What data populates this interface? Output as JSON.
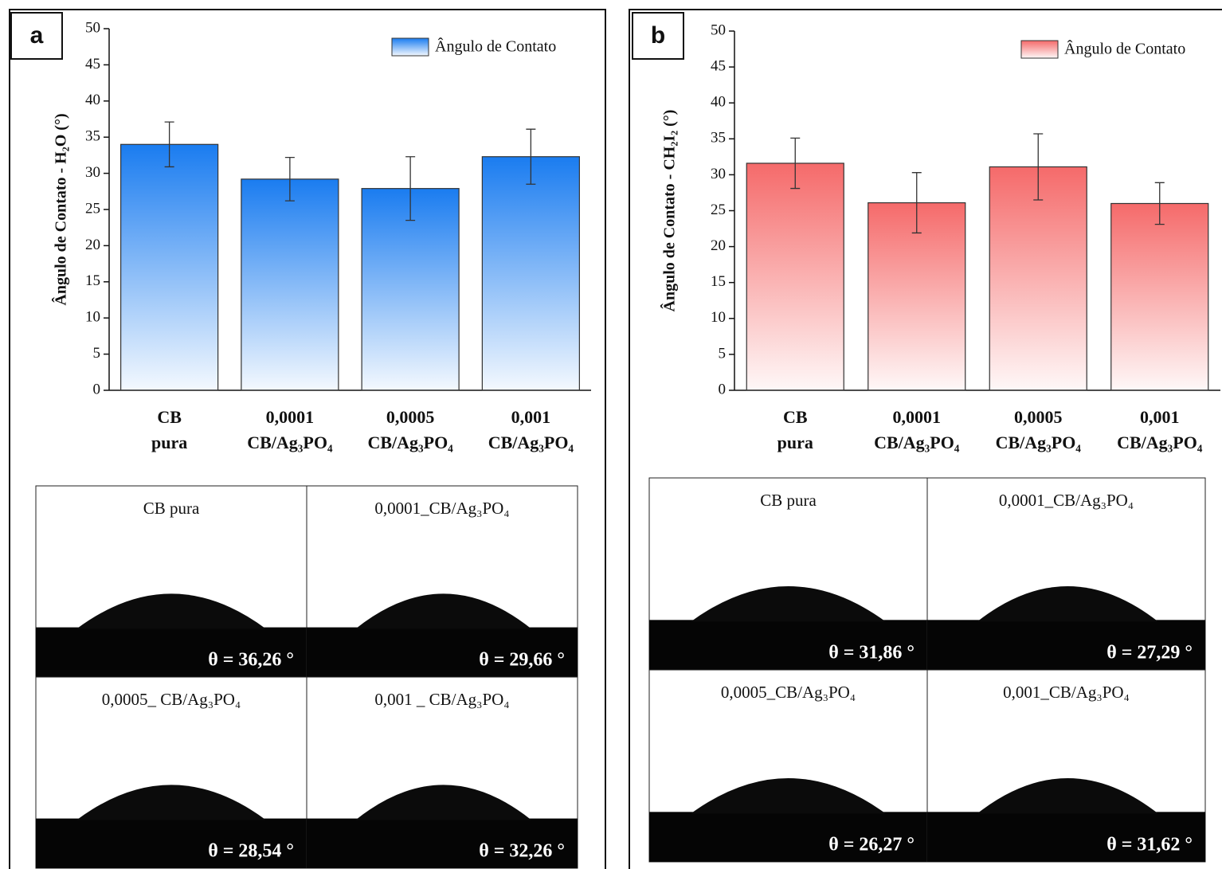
{
  "chart_data": [
    {
      "type": "bar",
      "panel": "a",
      "y_label": "Ângulo de Contato - H₂O (°)",
      "categories": [
        "CB pura",
        "0,0001 CB/Ag₃PO₄",
        "0,0005 CB/Ag₃PO₄",
        "0,001 CB/Ag₃PO₄"
      ],
      "series": [
        {
          "name": "Ângulo de Contato",
          "color": "#1a7cf0",
          "values": [
            34.0,
            29.2,
            27.9,
            32.3
          ],
          "errors": [
            3.1,
            3.0,
            4.4,
            3.8
          ]
        }
      ],
      "ylim": [
        0,
        50
      ],
      "yticks": [
        0,
        5,
        10,
        15,
        20,
        25,
        30,
        35,
        40,
        45,
        50
      ],
      "legend": "top-right",
      "images": [
        {
          "caption": "CB pura",
          "angle": "θ = 36,26 °"
        },
        {
          "caption": "0,0001_CB/Ag₃PO₄",
          "angle": "θ = 29,66 °"
        },
        {
          "caption": "0,0005_ CB/Ag₃PO₄",
          "angle": "θ = 28,54 °"
        },
        {
          "caption": "0,001 _ CB/Ag₃PO₄",
          "angle": "θ = 32,26 °"
        }
      ]
    },
    {
      "type": "bar",
      "panel": "b",
      "y_label": "Ângulo de Contato - CH₂I₂ (°)",
      "categories": [
        "CB pura",
        "0,0001 CB/Ag₃PO₄",
        "0,0005 CB/Ag₃PO₄",
        "0,001 CB/Ag₃PO₄"
      ],
      "series": [
        {
          "name": "Ângulo de Contato",
          "color": "#f56a6a",
          "values": [
            31.6,
            26.1,
            31.1,
            26.0
          ],
          "errors": [
            3.5,
            4.2,
            4.6,
            2.9
          ]
        }
      ],
      "ylim": [
        0,
        50
      ],
      "yticks": [
        0,
        5,
        10,
        15,
        20,
        25,
        30,
        35,
        40,
        45,
        50
      ],
      "legend": "top-right",
      "images": [
        {
          "caption": "CB pura",
          "angle": "θ = 31,86 °"
        },
        {
          "caption": "0,0001_CB/Ag₃PO₄",
          "angle": "θ = 27,29 °"
        },
        {
          "caption": "0,0005_CB/Ag₃PO₄",
          "angle": "θ = 26,27 °"
        },
        {
          "caption": "0,001_CB/Ag₃PO₄",
          "angle": "θ = 31,62 °"
        }
      ]
    }
  ]
}
